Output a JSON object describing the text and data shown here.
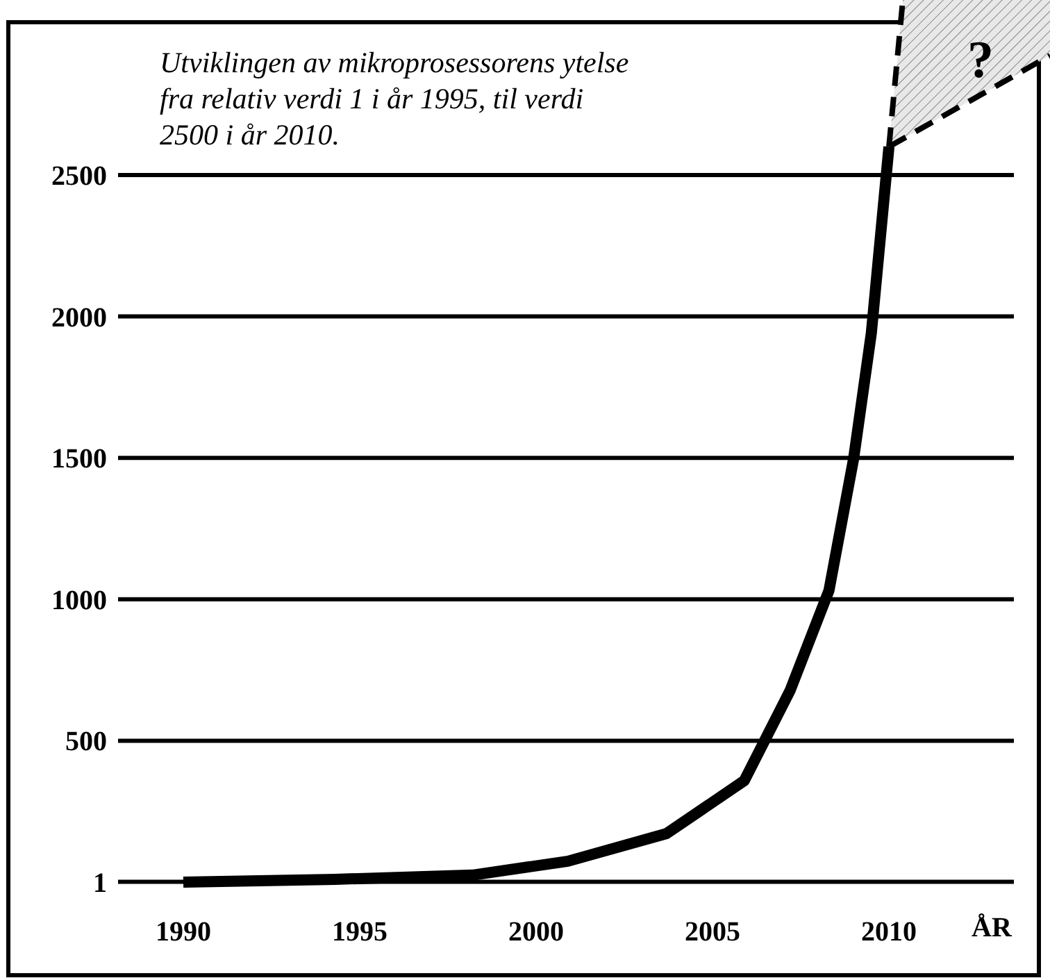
{
  "chart_data": {
    "type": "line",
    "title": "Utviklingen av mikroprosessorens ytelse\nfra relativ verdi 1 i år 1995, til verdi\n2500 i år 2010.",
    "xlabel": "ÅR",
    "x": [
      1990,
      1994.3,
      1998.2,
      2000.9,
      2003.7,
      2005.9,
      2007.2,
      2008.3,
      2009.0,
      2009.5,
      2010.0
    ],
    "series": [
      {
        "color": "#000000",
        "values": [
          0,
          10,
          25,
          74,
          172,
          359,
          678,
          1031,
          1498,
          1940,
          2600
        ]
      }
    ],
    "xlim": [
      1985.04,
      2014.25
    ],
    "xticks": [
      1990,
      1995,
      2000,
      2005,
      2010
    ],
    "ylim": [
      -329,
      3040
    ],
    "yticks": [
      1,
      500,
      1000,
      1500,
      2000,
      2500
    ],
    "grid": "y",
    "marker": "none",
    "line_style": "solid",
    "annotations": [
      {
        "text": "?",
        "x": 2010.0,
        "y": 2600
      }
    ]
  }
}
